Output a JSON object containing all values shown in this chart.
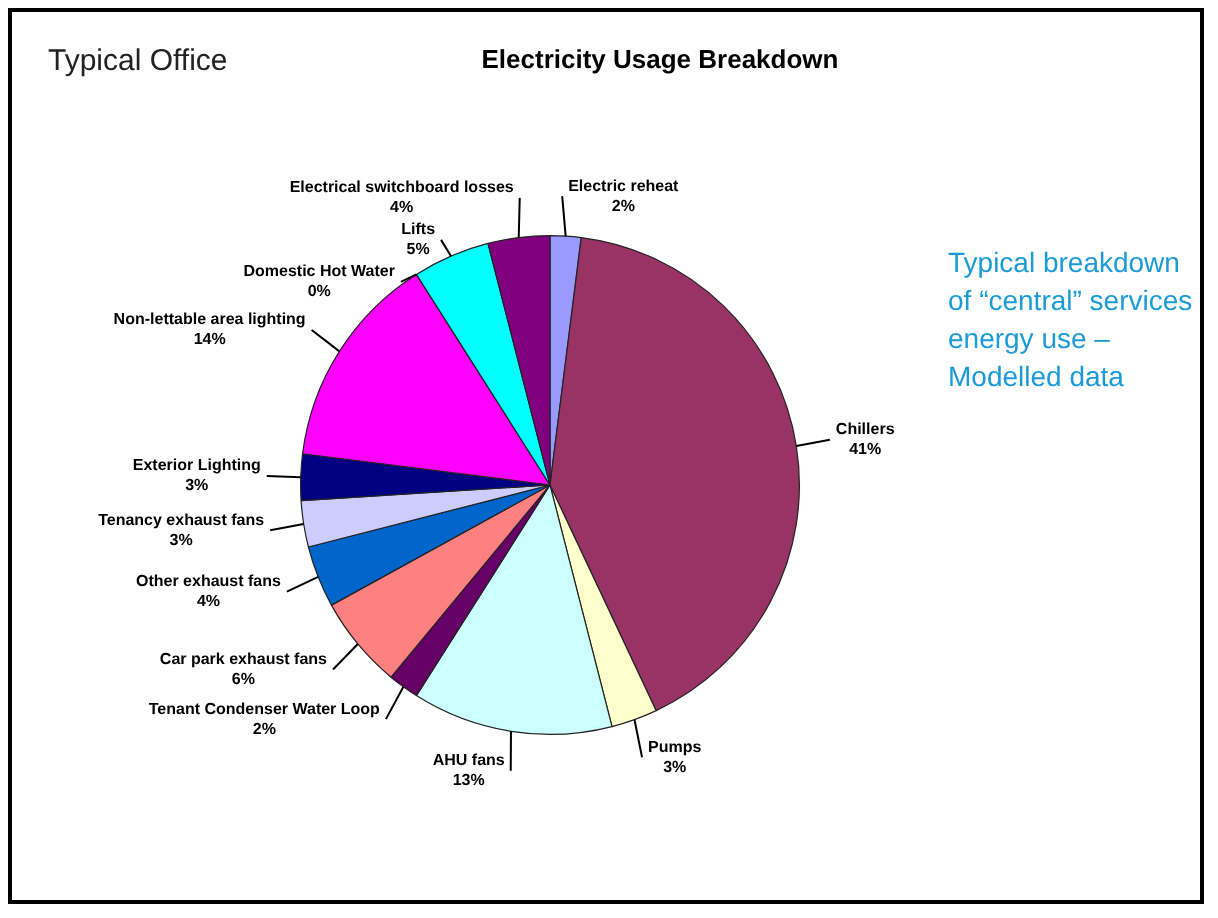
{
  "chart_data": {
    "type": "pie",
    "title": "Electricity Usage Breakdown",
    "categories": [
      "Electric reheat",
      "Chillers",
      "Pumps",
      "AHU fans",
      "Tenant Condenser Water Loop",
      "Car park exhaust fans",
      "Other exhaust fans",
      "Tenancy exhaust fans",
      "Exterior Lighting",
      "Non-lettable area lighting",
      "Domestic Hot Water",
      "Lifts",
      "Electrical switchboard losses"
    ],
    "values": [
      2,
      41,
      3,
      13,
      2,
      6,
      4,
      3,
      3,
      14,
      0,
      5,
      4
    ],
    "value_labels": [
      "2%",
      "41%",
      "3%",
      "13%",
      "2%",
      "6%",
      "4%",
      "3%",
      "3%",
      "14%",
      "0%",
      "5%",
      "4%"
    ],
    "colors": [
      "#9999ff",
      "#993366",
      "#ffffcc",
      "#ccffff",
      "#660066",
      "#ff8080",
      "#0066cc",
      "#ccccff",
      "#000080",
      "#ff00ff",
      "#ffff00",
      "#00ffff",
      "#800080"
    ],
    "annotations": [
      "Typical Office",
      "Typical breakdown of “central” services energy use – Modelled data"
    ]
  }
}
